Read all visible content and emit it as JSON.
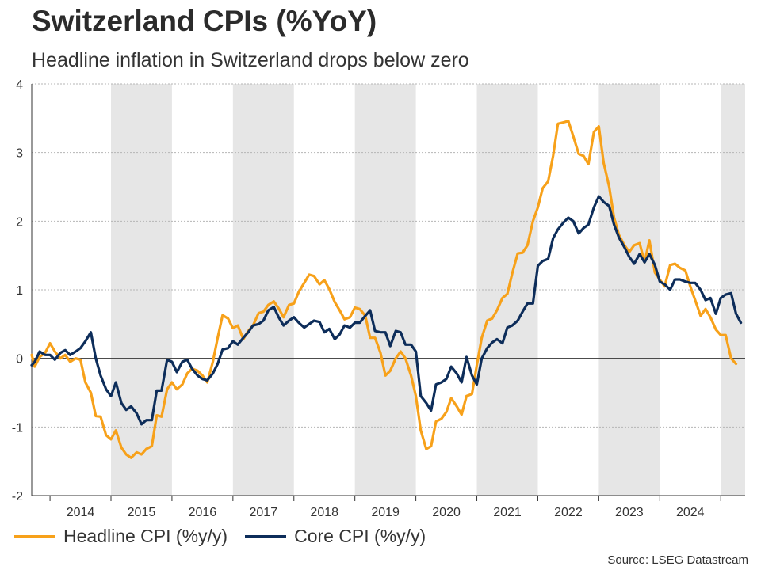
{
  "chart_data": {
    "type": "line",
    "title": "Switzerland CPIs (%YoY)",
    "subtitle": "Headline inflation in Switzerland drops below zero",
    "source": "Source: LSEG Datastream",
    "ylim": [
      -2,
      4
    ],
    "yticks": [
      4,
      3,
      2,
      1,
      0,
      -1,
      -2
    ],
    "x_start": 2013.7,
    "x_end": 2025.4,
    "years": [
      "2014",
      "2015",
      "2016",
      "2017",
      "2018",
      "2019",
      "2020",
      "2021",
      "2022",
      "2023",
      "2024"
    ],
    "shaded_years": [
      2015,
      2017,
      2019,
      2021,
      2023,
      2025
    ],
    "colors": {
      "headline": "#F7A11A",
      "core": "#0D2D5A"
    },
    "series": [
      {
        "name": "Headline CPI (%y/y)",
        "key": "headline",
        "points": [
          [
            2013.7,
            0.05
          ],
          [
            2013.75,
            -0.12
          ],
          [
            2013.83,
            0.02
          ],
          [
            2013.92,
            0.08
          ],
          [
            2014.0,
            0.22
          ],
          [
            2014.08,
            0.1
          ],
          [
            2014.17,
            0.0
          ],
          [
            2014.25,
            0.05
          ],
          [
            2014.33,
            -0.05
          ],
          [
            2014.42,
            0.0
          ],
          [
            2014.5,
            -0.02
          ],
          [
            2014.58,
            -0.35
          ],
          [
            2014.67,
            -0.5
          ],
          [
            2014.75,
            -0.84
          ],
          [
            2014.83,
            -0.85
          ],
          [
            2014.92,
            -1.12
          ],
          [
            2015.0,
            -1.18
          ],
          [
            2015.08,
            -1.05
          ],
          [
            2015.17,
            -1.3
          ],
          [
            2015.25,
            -1.4
          ],
          [
            2015.33,
            -1.45
          ],
          [
            2015.42,
            -1.37
          ],
          [
            2015.5,
            -1.4
          ],
          [
            2015.58,
            -1.32
          ],
          [
            2015.67,
            -1.28
          ],
          [
            2015.75,
            -0.83
          ],
          [
            2015.83,
            -0.85
          ],
          [
            2015.92,
            -0.45
          ],
          [
            2016.0,
            -0.35
          ],
          [
            2016.08,
            -0.45
          ],
          [
            2016.17,
            -0.38
          ],
          [
            2016.25,
            -0.22
          ],
          [
            2016.33,
            -0.15
          ],
          [
            2016.42,
            -0.18
          ],
          [
            2016.5,
            -0.25
          ],
          [
            2016.58,
            -0.35
          ],
          [
            2016.67,
            -0.05
          ],
          [
            2016.75,
            0.3
          ],
          [
            2016.83,
            0.63
          ],
          [
            2016.92,
            0.58
          ],
          [
            2017.0,
            0.44
          ],
          [
            2017.08,
            0.48
          ],
          [
            2017.17,
            0.28
          ],
          [
            2017.25,
            0.4
          ],
          [
            2017.33,
            0.48
          ],
          [
            2017.42,
            0.66
          ],
          [
            2017.5,
            0.68
          ],
          [
            2017.58,
            0.78
          ],
          [
            2017.67,
            0.83
          ],
          [
            2017.75,
            0.73
          ],
          [
            2017.83,
            0.6
          ],
          [
            2017.92,
            0.78
          ],
          [
            2018.0,
            0.8
          ],
          [
            2018.08,
            0.97
          ],
          [
            2018.17,
            1.1
          ],
          [
            2018.25,
            1.22
          ],
          [
            2018.33,
            1.2
          ],
          [
            2018.42,
            1.08
          ],
          [
            2018.5,
            1.14
          ],
          [
            2018.58,
            1.01
          ],
          [
            2018.67,
            0.82
          ],
          [
            2018.75,
            0.7
          ],
          [
            2018.83,
            0.57
          ],
          [
            2018.92,
            0.6
          ],
          [
            2019.0,
            0.74
          ],
          [
            2019.08,
            0.72
          ],
          [
            2019.17,
            0.62
          ],
          [
            2019.25,
            0.3
          ],
          [
            2019.33,
            0.3
          ],
          [
            2019.42,
            0.08
          ],
          [
            2019.5,
            -0.25
          ],
          [
            2019.58,
            -0.18
          ],
          [
            2019.67,
            0.0
          ],
          [
            2019.75,
            0.1
          ],
          [
            2019.83,
            0.0
          ],
          [
            2019.92,
            -0.25
          ],
          [
            2020.0,
            -0.55
          ],
          [
            2020.08,
            -1.05
          ],
          [
            2020.17,
            -1.32
          ],
          [
            2020.25,
            -1.28
          ],
          [
            2020.33,
            -0.92
          ],
          [
            2020.42,
            -0.88
          ],
          [
            2020.5,
            -0.78
          ],
          [
            2020.58,
            -0.58
          ],
          [
            2020.67,
            -0.7
          ],
          [
            2020.75,
            -0.82
          ],
          [
            2020.83,
            -0.55
          ],
          [
            2020.92,
            -0.52
          ],
          [
            2021.0,
            -0.1
          ],
          [
            2021.08,
            0.3
          ],
          [
            2021.17,
            0.55
          ],
          [
            2021.25,
            0.58
          ],
          [
            2021.33,
            0.7
          ],
          [
            2021.42,
            0.88
          ],
          [
            2021.5,
            0.94
          ],
          [
            2021.58,
            1.24
          ],
          [
            2021.67,
            1.53
          ],
          [
            2021.75,
            1.54
          ],
          [
            2021.83,
            1.65
          ],
          [
            2021.92,
            2.0
          ],
          [
            2022.0,
            2.2
          ],
          [
            2022.08,
            2.48
          ],
          [
            2022.17,
            2.58
          ],
          [
            2022.25,
            2.95
          ],
          [
            2022.33,
            3.42
          ],
          [
            2022.42,
            3.44
          ],
          [
            2022.5,
            3.46
          ],
          [
            2022.58,
            3.24
          ],
          [
            2022.67,
            2.98
          ],
          [
            2022.75,
            2.95
          ],
          [
            2022.83,
            2.83
          ],
          [
            2022.92,
            3.3
          ],
          [
            2023.0,
            3.38
          ],
          [
            2023.08,
            2.85
          ],
          [
            2023.17,
            2.5
          ],
          [
            2023.25,
            2.05
          ],
          [
            2023.33,
            1.8
          ],
          [
            2023.42,
            1.65
          ],
          [
            2023.5,
            1.55
          ],
          [
            2023.58,
            1.65
          ],
          [
            2023.67,
            1.68
          ],
          [
            2023.75,
            1.4
          ],
          [
            2023.83,
            1.72
          ],
          [
            2023.92,
            1.25
          ],
          [
            2024.0,
            1.15
          ],
          [
            2024.08,
            1.05
          ],
          [
            2024.17,
            1.36
          ],
          [
            2024.25,
            1.38
          ],
          [
            2024.33,
            1.32
          ],
          [
            2024.42,
            1.28
          ],
          [
            2024.5,
            1.05
          ],
          [
            2024.58,
            0.85
          ],
          [
            2024.67,
            0.62
          ],
          [
            2024.75,
            0.72
          ],
          [
            2024.83,
            0.6
          ],
          [
            2024.92,
            0.42
          ],
          [
            2025.0,
            0.34
          ],
          [
            2025.08,
            0.34
          ],
          [
            2025.17,
            0.0
          ],
          [
            2025.25,
            -0.08
          ]
        ]
      },
      {
        "name": "Core CPI (%y/y)",
        "key": "core",
        "points": [
          [
            2013.7,
            -0.1
          ],
          [
            2013.75,
            -0.05
          ],
          [
            2013.83,
            0.1
          ],
          [
            2013.92,
            0.05
          ],
          [
            2014.0,
            0.05
          ],
          [
            2014.08,
            -0.02
          ],
          [
            2014.17,
            0.08
          ],
          [
            2014.25,
            0.12
          ],
          [
            2014.33,
            0.05
          ],
          [
            2014.42,
            0.1
          ],
          [
            2014.5,
            0.15
          ],
          [
            2014.58,
            0.25
          ],
          [
            2014.67,
            0.38
          ],
          [
            2014.75,
            0.0
          ],
          [
            2014.83,
            -0.25
          ],
          [
            2014.92,
            -0.45
          ],
          [
            2015.0,
            -0.55
          ],
          [
            2015.08,
            -0.35
          ],
          [
            2015.17,
            -0.65
          ],
          [
            2015.25,
            -0.75
          ],
          [
            2015.33,
            -0.7
          ],
          [
            2015.42,
            -0.8
          ],
          [
            2015.5,
            -0.96
          ],
          [
            2015.58,
            -0.9
          ],
          [
            2015.67,
            -0.9
          ],
          [
            2015.75,
            -0.47
          ],
          [
            2015.83,
            -0.47
          ],
          [
            2015.92,
            -0.02
          ],
          [
            2016.0,
            -0.05
          ],
          [
            2016.08,
            -0.2
          ],
          [
            2016.17,
            -0.05
          ],
          [
            2016.25,
            -0.02
          ],
          [
            2016.33,
            -0.15
          ],
          [
            2016.42,
            -0.25
          ],
          [
            2016.5,
            -0.3
          ],
          [
            2016.58,
            -0.32
          ],
          [
            2016.67,
            -0.22
          ],
          [
            2016.75,
            -0.08
          ],
          [
            2016.83,
            0.13
          ],
          [
            2016.92,
            0.15
          ],
          [
            2017.0,
            0.25
          ],
          [
            2017.08,
            0.2
          ],
          [
            2017.17,
            0.3
          ],
          [
            2017.25,
            0.38
          ],
          [
            2017.33,
            0.48
          ],
          [
            2017.42,
            0.5
          ],
          [
            2017.5,
            0.55
          ],
          [
            2017.58,
            0.7
          ],
          [
            2017.67,
            0.75
          ],
          [
            2017.75,
            0.6
          ],
          [
            2017.83,
            0.48
          ],
          [
            2017.92,
            0.55
          ],
          [
            2018.0,
            0.6
          ],
          [
            2018.08,
            0.52
          ],
          [
            2018.17,
            0.45
          ],
          [
            2018.25,
            0.5
          ],
          [
            2018.33,
            0.55
          ],
          [
            2018.42,
            0.53
          ],
          [
            2018.5,
            0.38
          ],
          [
            2018.58,
            0.43
          ],
          [
            2018.67,
            0.28
          ],
          [
            2018.75,
            0.35
          ],
          [
            2018.83,
            0.48
          ],
          [
            2018.92,
            0.45
          ],
          [
            2019.0,
            0.52
          ],
          [
            2019.08,
            0.52
          ],
          [
            2019.17,
            0.62
          ],
          [
            2019.25,
            0.7
          ],
          [
            2019.33,
            0.4
          ],
          [
            2019.42,
            0.38
          ],
          [
            2019.5,
            0.38
          ],
          [
            2019.58,
            0.18
          ],
          [
            2019.67,
            0.4
          ],
          [
            2019.75,
            0.38
          ],
          [
            2019.83,
            0.2
          ],
          [
            2019.92,
            0.2
          ],
          [
            2020.0,
            0.1
          ],
          [
            2020.08,
            -0.55
          ],
          [
            2020.17,
            -0.65
          ],
          [
            2020.25,
            -0.76
          ],
          [
            2020.33,
            -0.38
          ],
          [
            2020.42,
            -0.35
          ],
          [
            2020.5,
            -0.3
          ],
          [
            2020.58,
            -0.12
          ],
          [
            2020.67,
            -0.22
          ],
          [
            2020.75,
            -0.35
          ],
          [
            2020.83,
            0.02
          ],
          [
            2020.92,
            -0.25
          ],
          [
            2021.0,
            -0.38
          ],
          [
            2021.08,
            0.0
          ],
          [
            2021.17,
            0.15
          ],
          [
            2021.25,
            0.23
          ],
          [
            2021.33,
            0.28
          ],
          [
            2021.42,
            0.22
          ],
          [
            2021.5,
            0.45
          ],
          [
            2021.58,
            0.48
          ],
          [
            2021.67,
            0.55
          ],
          [
            2021.75,
            0.68
          ],
          [
            2021.83,
            0.8
          ],
          [
            2021.92,
            0.8
          ],
          [
            2022.0,
            1.35
          ],
          [
            2022.08,
            1.42
          ],
          [
            2022.17,
            1.45
          ],
          [
            2022.25,
            1.75
          ],
          [
            2022.33,
            1.88
          ],
          [
            2022.42,
            1.98
          ],
          [
            2022.5,
            2.05
          ],
          [
            2022.58,
            2.0
          ],
          [
            2022.67,
            1.82
          ],
          [
            2022.75,
            1.9
          ],
          [
            2022.83,
            1.95
          ],
          [
            2022.92,
            2.2
          ],
          [
            2023.0,
            2.36
          ],
          [
            2023.08,
            2.28
          ],
          [
            2023.17,
            2.22
          ],
          [
            2023.25,
            1.95
          ],
          [
            2023.33,
            1.76
          ],
          [
            2023.42,
            1.62
          ],
          [
            2023.5,
            1.48
          ],
          [
            2023.58,
            1.38
          ],
          [
            2023.67,
            1.52
          ],
          [
            2023.75,
            1.4
          ],
          [
            2023.83,
            1.52
          ],
          [
            2023.92,
            1.36
          ],
          [
            2024.0,
            1.12
          ],
          [
            2024.08,
            1.08
          ],
          [
            2024.17,
            1.0
          ],
          [
            2024.25,
            1.15
          ],
          [
            2024.33,
            1.15
          ],
          [
            2024.42,
            1.12
          ],
          [
            2024.5,
            1.1
          ],
          [
            2024.58,
            1.1
          ],
          [
            2024.67,
            1.0
          ],
          [
            2024.75,
            0.85
          ],
          [
            2024.83,
            0.88
          ],
          [
            2024.92,
            0.65
          ],
          [
            2025.0,
            0.88
          ],
          [
            2025.08,
            0.93
          ],
          [
            2025.17,
            0.95
          ],
          [
            2025.25,
            0.65
          ],
          [
            2025.33,
            0.52
          ]
        ]
      }
    ]
  }
}
